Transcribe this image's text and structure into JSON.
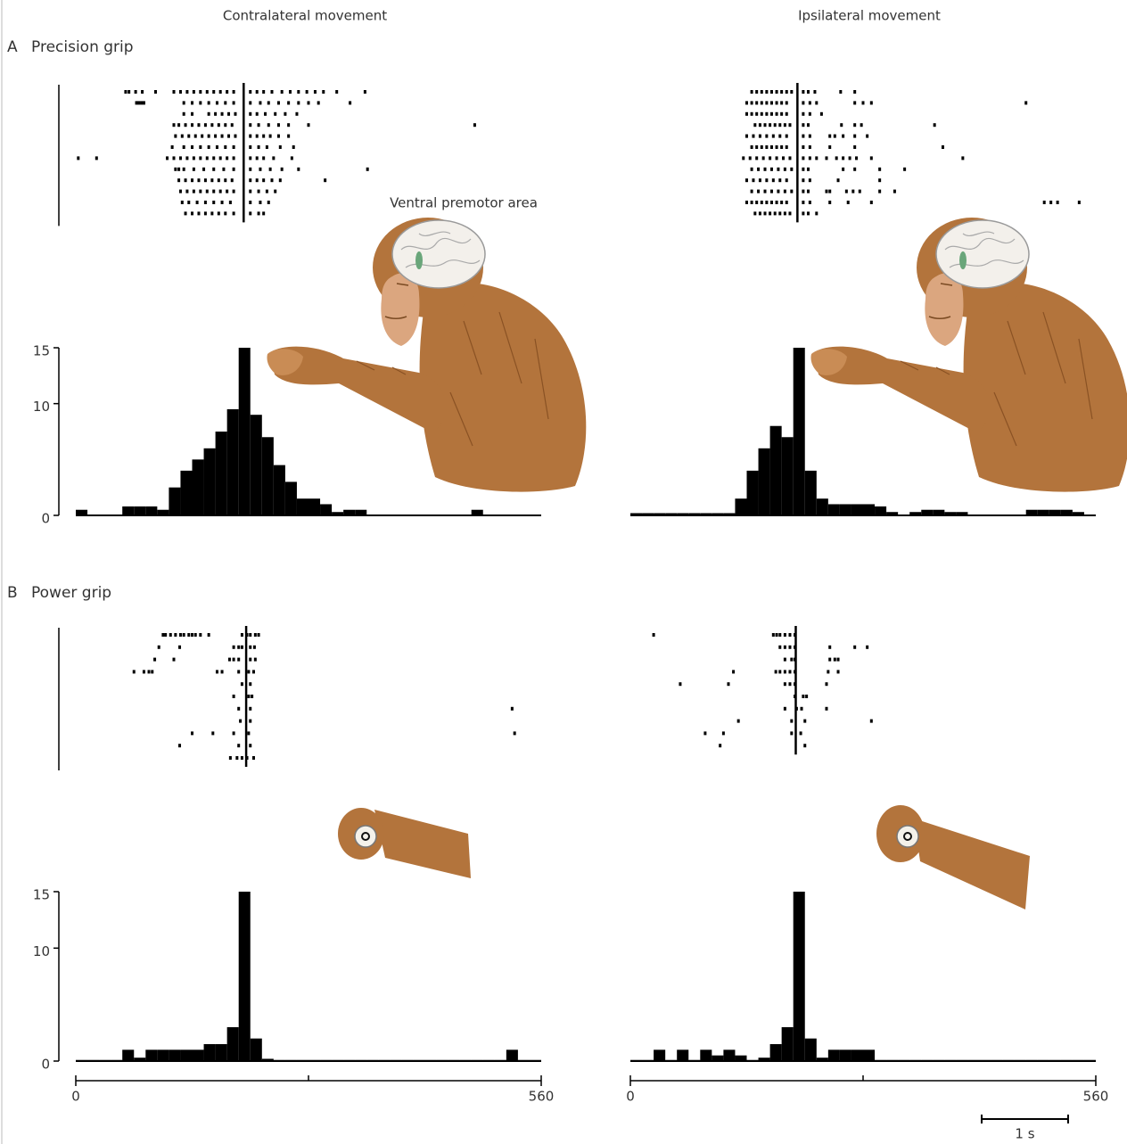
{
  "columns": [
    "Contralateral movement",
    "Ipsilateral movement"
  ],
  "panels": [
    {
      "letter": "A",
      "title": "Precision grip"
    },
    {
      "letter": "B",
      "title": "Power grip"
    }
  ],
  "annotation": "Ventral premotor area",
  "scale_bar": {
    "label": "1 s",
    "length": 104
  },
  "chart_data": [
    {
      "type": "psth",
      "xlim": [
        0,
        560
      ],
      "ylim": [
        0,
        15
      ],
      "yticks": [
        0,
        10,
        15
      ],
      "event": 202,
      "trials": [
        [
          60,
          64,
          72,
          80,
          96,
          118,
          126,
          134,
          142,
          150,
          158,
          166,
          174,
          182,
          190,
          210,
          218,
          226,
          236,
          248,
          258,
          268,
          278,
          288,
          298,
          314,
          348
        ],
        [
          73,
          76,
          79,
          82,
          130,
          140,
          150,
          160,
          170,
          180,
          190,
          210,
          222,
          232,
          244,
          256,
          268,
          280,
          292,
          330
        ],
        [
          130,
          140,
          160,
          168,
          176,
          184,
          192,
          210,
          218,
          228,
          240,
          252,
          266
        ],
        [
          118,
          124,
          132,
          140,
          148,
          156,
          164,
          172,
          180,
          188,
          210,
          220,
          232,
          244,
          256,
          280,
          480
        ],
        [
          120,
          128,
          136,
          144,
          152,
          160,
          168,
          176,
          184,
          192,
          210,
          218,
          226,
          234,
          244,
          256
        ],
        [
          116,
          130,
          140,
          150,
          160,
          170,
          180,
          190,
          210,
          220,
          230,
          246,
          262
        ],
        [
          3,
          25,
          110,
          118,
          126,
          134,
          142,
          150,
          158,
          166,
          174,
          182,
          190,
          210,
          218,
          226,
          238,
          260
        ],
        [
          120,
          124,
          130,
          142,
          154,
          166,
          178,
          190,
          210,
          222,
          234,
          248,
          268,
          351
        ],
        [
          124,
          132,
          140,
          148,
          156,
          164,
          172,
          180,
          188,
          210,
          218,
          226,
          236,
          246,
          300
        ],
        [
          126,
          134,
          142,
          150,
          158,
          166,
          174,
          182,
          190,
          210,
          220,
          230,
          240
        ],
        [
          128,
          136,
          146,
          156,
          166,
          176,
          186,
          210,
          222,
          232
        ],
        [
          132,
          140,
          148,
          156,
          164,
          172,
          180,
          190,
          210,
          220,
          226
        ]
      ],
      "bins": [
        0,
        14,
        28,
        42,
        56,
        70,
        84,
        98,
        112,
        126,
        140,
        154,
        168,
        182,
        196,
        210,
        224,
        238,
        252,
        266,
        280,
        294,
        308,
        322,
        336,
        350,
        364,
        378,
        392,
        406,
        420,
        434,
        448,
        462,
        476,
        490,
        504,
        518,
        532,
        546,
        560
      ],
      "counts": [
        0.5,
        0,
        0,
        0,
        0.8,
        0.8,
        0.8,
        0.5,
        2.5,
        4,
        5,
        6,
        7.5,
        9.5,
        15,
        9,
        7,
        4.5,
        3,
        1.5,
        1.5,
        1,
        0.3,
        0.5,
        0.5,
        0,
        0,
        0,
        0,
        0,
        0,
        0,
        0,
        0,
        0.5,
        0,
        0,
        0,
        0,
        0
      ]
    },
    {
      "type": "psth",
      "xlim": [
        0,
        560
      ],
      "ylim": [
        0,
        15
      ],
      "event": 201,
      "trials": [
        [
          146,
          152,
          158,
          164,
          170,
          176,
          182,
          188,
          194,
          208,
          214,
          222,
          253,
          270
        ],
        [
          140,
          146,
          152,
          158,
          164,
          170,
          176,
          182,
          188,
          208,
          216,
          224,
          270,
          280,
          290,
          476
        ],
        [
          140,
          146,
          152,
          158,
          164,
          170,
          176,
          182,
          188,
          208,
          216,
          230
        ],
        [
          150,
          156,
          162,
          168,
          174,
          180,
          186,
          192,
          208,
          214,
          254,
          270,
          278,
          366
        ],
        [
          140,
          148,
          156,
          164,
          172,
          180,
          188,
          208,
          216,
          240,
          246,
          256,
          270,
          285
        ],
        [
          146,
          152,
          158,
          164,
          170,
          176,
          182,
          188,
          208,
          216,
          240,
          270,
          376
        ],
        [
          136,
          144,
          152,
          160,
          168,
          176,
          184,
          192,
          208,
          216,
          224,
          236,
          248,
          256,
          264,
          272,
          290,
          400
        ],
        [
          146,
          154,
          162,
          170,
          178,
          186,
          194,
          208,
          214,
          256,
          270,
          300,
          330
        ],
        [
          140,
          148,
          156,
          164,
          172,
          180,
          188,
          208,
          216,
          250,
          300
        ],
        [
          146,
          154,
          162,
          170,
          178,
          186,
          194,
          208,
          214,
          236,
          240,
          260,
          268,
          276,
          300,
          318
        ],
        [
          140,
          146,
          152,
          158,
          164,
          170,
          176,
          182,
          188,
          208,
          216,
          240,
          262,
          290,
          498,
          506,
          514,
          540
        ],
        [
          150,
          156,
          162,
          168,
          174,
          180,
          186,
          192,
          208,
          214,
          224
        ]
      ],
      "bins": [
        0,
        14,
        28,
        42,
        56,
        70,
        84,
        98,
        112,
        126,
        140,
        154,
        168,
        182,
        196,
        210,
        224,
        238,
        252,
        266,
        280,
        294,
        308,
        322,
        336,
        350,
        364,
        378,
        392,
        406,
        420,
        434,
        448,
        462,
        476,
        490,
        504,
        518,
        532,
        546,
        560
      ],
      "counts": [
        0.2,
        0.2,
        0.2,
        0.2,
        0.2,
        0.2,
        0.2,
        0.2,
        0.2,
        1.5,
        4,
        6,
        8,
        7,
        15,
        4,
        1.5,
        1,
        1,
        1,
        1,
        0.8,
        0.3,
        0,
        0.3,
        0.5,
        0.5,
        0.3,
        0.3,
        0,
        0,
        0,
        0,
        0,
        0.5,
        0.5,
        0.5,
        0.5,
        0.3,
        0
      ]
    },
    {
      "type": "psth",
      "xlim": [
        0,
        560
      ],
      "ylim": [
        0,
        15
      ],
      "yticks": [
        0,
        10,
        15
      ],
      "xticks": [
        0,
        560
      ],
      "xminorticks": [
        280
      ],
      "event": 205,
      "trials": [
        [
          105,
          108,
          114,
          120,
          126,
          130,
          136,
          140,
          144,
          150,
          160,
          200,
          206,
          210,
          216,
          220
        ],
        [
          100,
          125,
          190,
          196,
          200,
          210,
          215
        ],
        [
          95,
          118,
          185,
          190,
          196,
          210,
          216
        ],
        [
          70,
          82,
          88,
          92,
          170,
          176,
          196,
          208,
          214
        ],
        [
          200,
          210
        ],
        [
          190,
          208,
          212
        ],
        [
          196,
          210,
          525
        ],
        [
          198,
          210
        ],
        [
          140,
          165,
          190,
          208,
          528
        ],
        [
          125,
          196,
          210
        ],
        [
          186,
          194,
          200,
          206,
          214
        ]
      ],
      "bins": [
        0,
        14,
        28,
        42,
        56,
        70,
        84,
        98,
        112,
        126,
        140,
        154,
        168,
        182,
        196,
        210,
        224,
        238,
        252,
        266,
        280,
        294,
        308,
        322,
        336,
        350,
        364,
        378,
        392,
        406,
        420,
        434,
        448,
        462,
        476,
        490,
        504,
        518,
        532,
        546,
        560
      ],
      "counts": [
        0.1,
        0.1,
        0.1,
        0.1,
        1,
        0.3,
        1,
        1,
        1,
        1,
        1,
        1.5,
        1.5,
        3,
        15,
        2,
        0.2,
        0.1,
        0.1,
        0.1,
        0.1,
        0.1,
        0.1,
        0.1,
        0.1,
        0.1,
        0.1,
        0.1,
        0.1,
        0.1,
        0.1,
        0.1,
        0.1,
        0.1,
        0.1,
        0.1,
        0.1,
        1,
        0.1,
        0.1
      ]
    },
    {
      "type": "psth",
      "xlim": [
        0,
        560
      ],
      "ylim": [
        0,
        15
      ],
      "xticks": [
        0,
        560
      ],
      "xminorticks": [
        280
      ],
      "event": 199,
      "trials": [
        [
          28,
          172,
          176,
          180,
          186,
          192,
          198
        ],
        [
          180,
          186,
          192,
          198,
          240,
          270,
          285
        ],
        [
          186,
          194,
          198,
          240,
          246,
          250
        ],
        [
          124,
          175,
          180,
          186,
          192,
          198,
          238,
          250
        ],
        [
          60,
          118,
          186,
          192,
          198,
          236
        ],
        [
          198,
          208,
          212
        ],
        [
          186,
          200,
          206,
          236
        ],
        [
          130,
          194,
          210,
          290
        ],
        [
          90,
          112,
          194,
          205
        ],
        [
          108,
          210
        ]
      ],
      "bins": [
        0,
        14,
        28,
        42,
        56,
        70,
        84,
        98,
        112,
        126,
        140,
        154,
        168,
        182,
        196,
        210,
        224,
        238,
        252,
        266,
        280,
        294,
        308,
        322,
        336,
        350,
        364,
        378,
        392,
        406,
        420,
        434,
        448,
        462,
        476,
        490,
        504,
        518,
        532,
        546,
        560
      ],
      "counts": [
        0.1,
        0.1,
        1,
        0.1,
        1,
        0.1,
        1,
        0.5,
        1,
        0.5,
        0.1,
        0.3,
        1.5,
        3,
        15,
        2,
        0.3,
        1,
        1,
        1,
        1,
        0.1,
        0.1,
        0.1,
        0.1,
        0.1,
        0.1,
        0.1,
        0.1,
        0.1,
        0.1,
        0.1,
        0.1,
        0.1,
        0.1,
        0.1,
        0.1,
        0.1,
        0.1,
        0.1
      ]
    }
  ]
}
